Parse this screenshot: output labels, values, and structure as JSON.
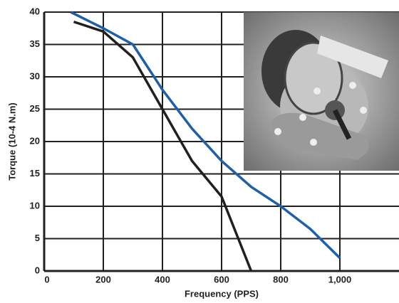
{
  "chart_data": {
    "type": "line",
    "xlabel": "Frequency (PPS)",
    "ylabel": "Torque (10-4 N.m)",
    "xlim": [
      0,
      1200
    ],
    "ylim": [
      0,
      40
    ],
    "xticks": [
      0,
      200,
      400,
      600,
      800,
      {
        "value": 1000,
        "label": "1,000"
      }
    ],
    "yticks": [
      0,
      5,
      10,
      15,
      20,
      25,
      30,
      35,
      40
    ],
    "grid": true,
    "series": [
      {
        "color": "#1f5fa8",
        "x": [
          90,
          200,
          300,
          400,
          500,
          600,
          700,
          800,
          900,
          1000
        ],
        "values": [
          40,
          37.5,
          35,
          28,
          22,
          17,
          13,
          10,
          6.5,
          2
        ]
      },
      {
        "color": "#231f20",
        "x": [
          100,
          200,
          300,
          400,
          500,
          600,
          700
        ],
        "values": [
          38.5,
          37,
          33,
          25,
          17,
          11.5,
          0
        ]
      }
    ]
  }
}
